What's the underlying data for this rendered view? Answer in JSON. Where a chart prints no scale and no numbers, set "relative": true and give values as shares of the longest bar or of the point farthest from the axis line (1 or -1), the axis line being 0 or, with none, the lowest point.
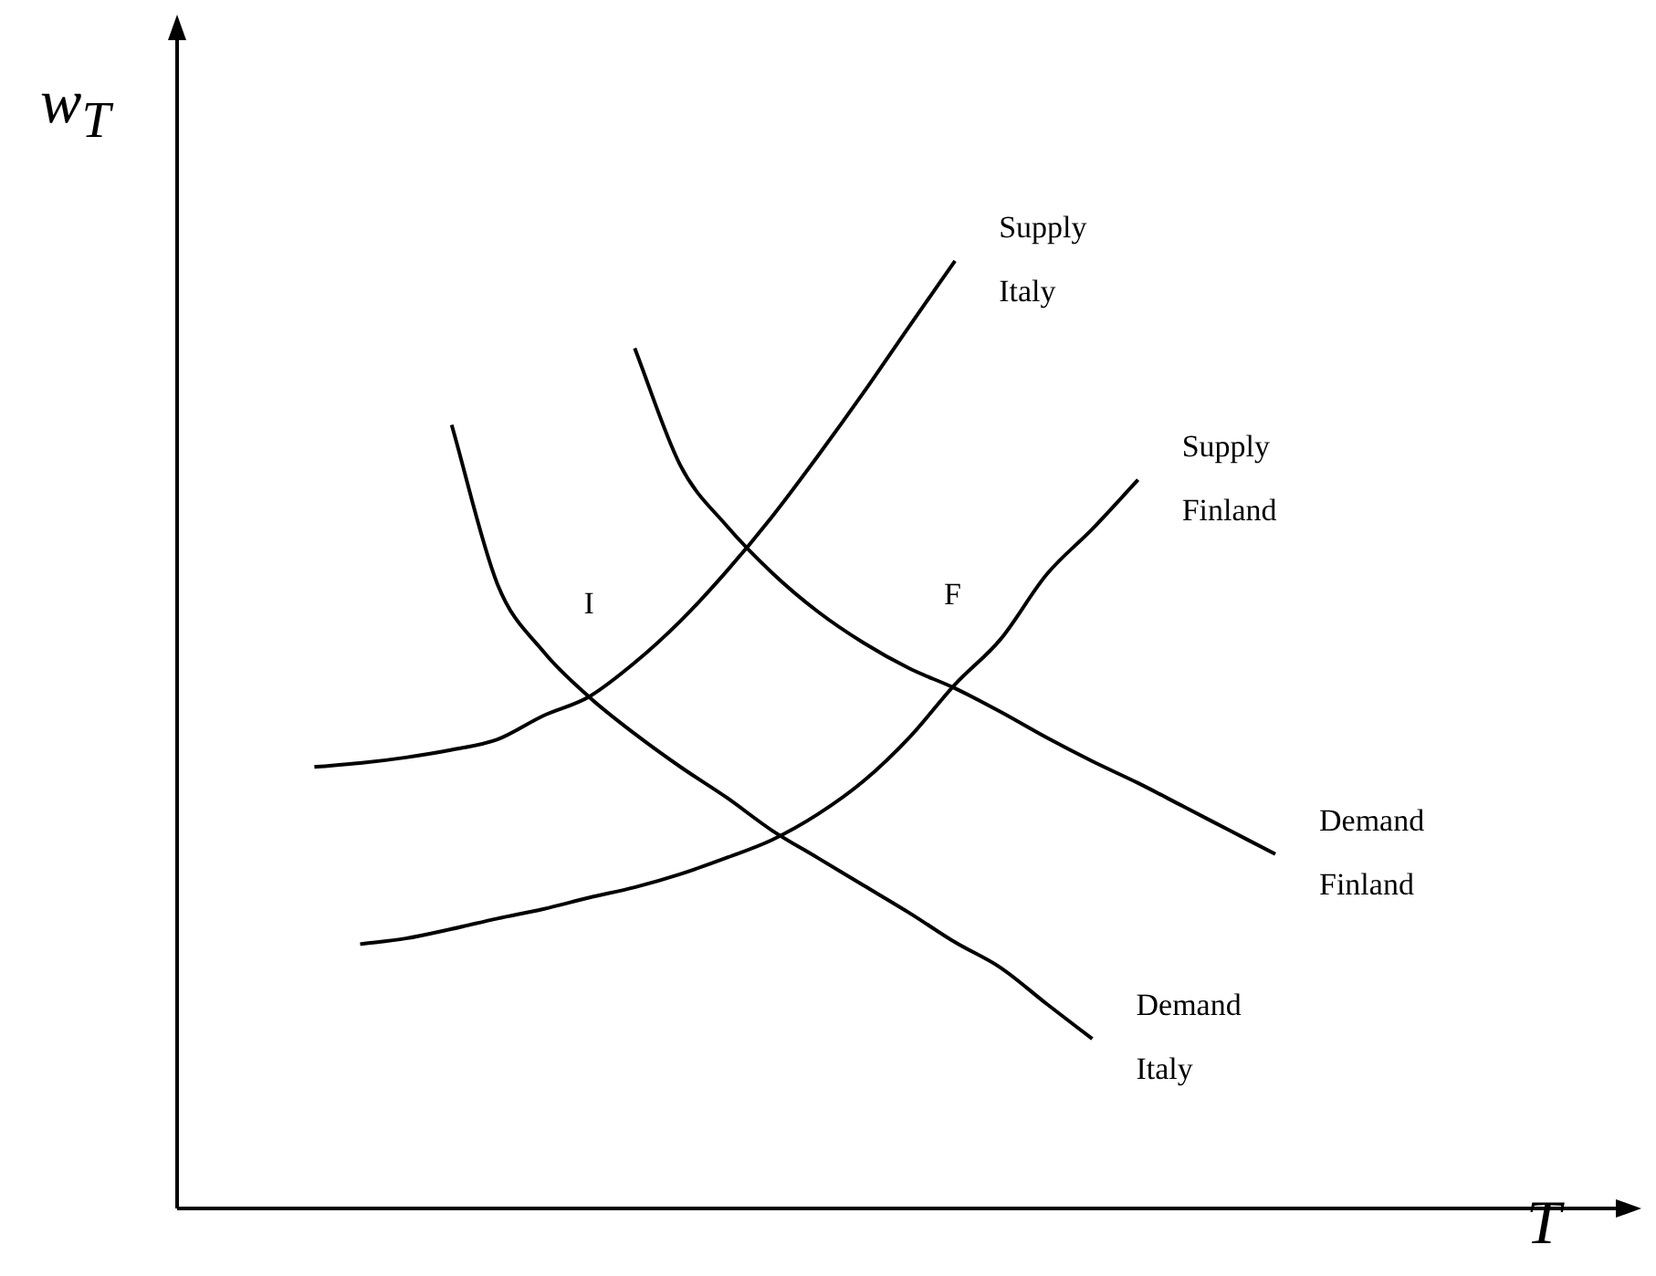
{
  "chart_data": {
    "type": "line",
    "relative": true,
    "xlabel": "T",
    "ylabel": "w$_{T}$",
    "legend": false,
    "marker": "none",
    "line_style": "solid",
    "categories": [
      null,
      null,
      null,
      null,
      null,
      null,
      null,
      null,
      null,
      null,
      null,
      null,
      null,
      null,
      null,
      null,
      null,
      null,
      null,
      null,
      null,
      null,
      null,
      null,
      null,
      null,
      null,
      null,
      null,
      null,
      null,
      null,
      null
    ],
    "series": [
      {
        "name": "Supply Italy",
        "color": "#000000",
        "values": [
          null,
          null,
          null,
          0.466,
          0.47,
          0.476,
          0.484,
          0.495,
          0.52,
          0.54,
          0.576,
          0.62,
          0.672,
          0.73,
          0.794,
          0.861,
          0.931,
          1,
          null,
          null,
          null,
          null,
          null,
          null,
          null,
          null,
          null,
          null,
          null,
          null,
          null,
          null,
          null
        ]
      },
      {
        "name": "Supply Finland",
        "color": "#000000",
        "values": [
          null,
          null,
          null,
          null,
          0.279,
          0.285,
          0.295,
          0.306,
          0.316,
          0.328,
          0.339,
          0.353,
          0.37,
          0.389,
          0.416,
          0.451,
          0.497,
          0.553,
          0.601,
          0.669,
          0.717,
          0.769,
          null,
          null,
          null,
          null,
          null,
          null,
          null,
          null,
          null,
          null,
          null
        ]
      },
      {
        "name": "Demand Italy",
        "color": "#000000",
        "values": [
          null,
          null,
          null,
          null,
          null,
          null,
          0.827,
          0.659,
          0.588,
          0.54,
          0.501,
          0.466,
          0.434,
          0.399,
          0.37,
          0.341,
          0.312,
          0.281,
          0.254,
          0.216,
          0.179,
          null,
          null,
          null,
          null,
          null,
          null,
          null,
          null,
          null,
          null,
          null,
          null
        ]
      },
      {
        "name": "Demand Finland",
        "color": "#000000",
        "values": [
          null,
          null,
          null,
          null,
          null,
          null,
          null,
          null,
          null,
          null,
          0.908,
          0.784,
          0.721,
          0.671,
          0.63,
          0.597,
          0.57,
          0.549,
          0.524,
          0.497,
          0.472,
          0.449,
          0.424,
          0.399,
          0.374,
          null,
          null,
          null,
          null,
          null,
          null,
          null,
          null
        ]
      }
    ],
    "annotations": [
      "I",
      "F"
    ]
  }
}
